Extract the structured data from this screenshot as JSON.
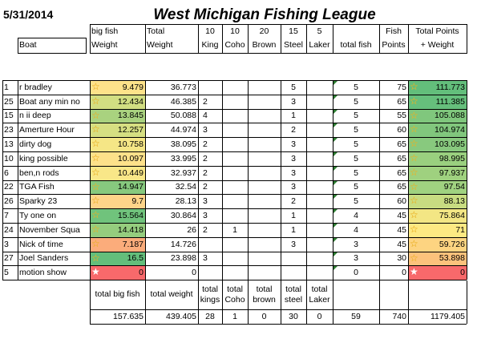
{
  "date": "5/31/2014",
  "title": "West Michigan Fishing League",
  "header": {
    "row1": {
      "boat": "",
      "bigfish": "big fish",
      "total": "Total",
      "king_pts": "10",
      "coho_pts": "10",
      "brown_pts": "20",
      "steel_pts": "15",
      "laker_pts": "5",
      "fish_label": "Fish",
      "totalpoints": "Total Points"
    },
    "row2": {
      "boat": "Boat",
      "bigfish": "Weight",
      "total": "Weight",
      "king": "King",
      "coho": "Coho",
      "brown": "Brown",
      "steel": "Steel",
      "laker": "Laker",
      "totalfish": "total fish",
      "points": "Points",
      "totalpoints": "+ Weight"
    }
  },
  "rows": [
    {
      "num": "1",
      "boat": "r bradley",
      "big": "9.479",
      "total": "36.773",
      "king": "",
      "coho": "",
      "brown": "",
      "steel": "5",
      "laker": "",
      "fish": "5",
      "points": "75",
      "tp": "111.773",
      "bigcolor": "#fde28a",
      "tpcolor": "#63be7b"
    },
    {
      "num": "25",
      "boat": "Boat any min no",
      "big": "12.434",
      "total": "46.385",
      "king": "2",
      "coho": "",
      "brown": "",
      "steel": "3",
      "laker": "",
      "fish": "5",
      "points": "65",
      "tp": "111.385",
      "bigcolor": "#d2de82",
      "tpcolor": "#66bf7c"
    },
    {
      "num": "15",
      "boat": "n ii deep",
      "big": "13.845",
      "total": "50.088",
      "king": "4",
      "coho": "",
      "brown": "",
      "steel": "1",
      "laker": "",
      "fish": "5",
      "points": "55",
      "tp": "105.088",
      "bigcolor": "#a9d27f",
      "tpcolor": "#80c77d"
    },
    {
      "num": "23",
      "boat": "Amerture Hour",
      "big": "12.257",
      "total": "44.974",
      "king": "3",
      "coho": "",
      "brown": "",
      "steel": "2",
      "laker": "",
      "fish": "5",
      "points": "60",
      "tp": "104.974",
      "bigcolor": "#d6df82",
      "tpcolor": "#81c77d"
    },
    {
      "num": "13",
      "boat": "dirty dog",
      "big": "10.758",
      "total": "38.095",
      "king": "2",
      "coho": "",
      "brown": "",
      "steel": "3",
      "laker": "",
      "fish": "5",
      "points": "65",
      "tp": "103.095",
      "bigcolor": "#f5e686",
      "tpcolor": "#88c97e"
    },
    {
      "num": "10",
      "boat": "king possible",
      "big": "10.097",
      "total": "33.995",
      "king": "2",
      "coho": "",
      "brown": "",
      "steel": "3",
      "laker": "",
      "fish": "5",
      "points": "65",
      "tp": "98.995",
      "bigcolor": "#fde18a",
      "tpcolor": "#9ad07f"
    },
    {
      "num": "6",
      "boat": "ben,n rods",
      "big": "10.449",
      "total": "32.937",
      "king": "2",
      "coho": "",
      "brown": "",
      "steel": "3",
      "laker": "",
      "fish": "5",
      "points": "65",
      "tp": "97.937",
      "bigcolor": "#f9e788",
      "tpcolor": "#9fd17f"
    },
    {
      "num": "22",
      "boat": "TGA Fish",
      "big": "14.947",
      "total": "32.54",
      "king": "2",
      "coho": "",
      "brown": "",
      "steel": "3",
      "laker": "",
      "fish": "5",
      "points": "65",
      "tp": "97.54",
      "bigcolor": "#87c97e",
      "tpcolor": "#a0d280"
    },
    {
      "num": "26",
      "boat": "Sparky 23",
      "big": "9.7",
      "total": "28.13",
      "king": "3",
      "coho": "",
      "brown": "",
      "steel": "2",
      "laker": "",
      "fish": "5",
      "points": "60",
      "tp": "88.13",
      "bigcolor": "#fed489",
      "tpcolor": "#c8dc81"
    },
    {
      "num": "7",
      "boat": "Ty one on",
      "big": "15.564",
      "total": "30.864",
      "king": "3",
      "coho": "",
      "brown": "",
      "steel": "1",
      "laker": "",
      "fish": "4",
      "points": "45",
      "tp": "75.864",
      "bigcolor": "#70c37c",
      "tpcolor": "#f3e684"
    },
    {
      "num": "24",
      "boat": "November Squa",
      "big": "14.418",
      "total": "26",
      "king": "2",
      "coho": "1",
      "brown": "",
      "steel": "1",
      "laker": "",
      "fish": "4",
      "points": "45",
      "tp": "71",
      "bigcolor": "#95cd7e",
      "tpcolor": "#fde983"
    },
    {
      "num": "3",
      "boat": "Nick of time",
      "big": "7.187",
      "total": "14.726",
      "king": "",
      "coho": "",
      "brown": "",
      "steel": "3",
      "laker": "",
      "fish": "3",
      "points": "45",
      "tp": "59.726",
      "bigcolor": "#fbac7b",
      "tpcolor": "#fdd481"
    },
    {
      "num": "27",
      "boat": "Joel Sanders",
      "big": "16.5",
      "total": "23.898",
      "king": "3",
      "coho": "",
      "brown": "",
      "steel": "",
      "laker": "",
      "fish": "3",
      "points": "30",
      "tp": "53.898",
      "bigcolor": "#63be7b",
      "tpcolor": "#fcc27c"
    },
    {
      "num": "5",
      "boat": "motion show",
      "big": "0",
      "total": "0",
      "king": "",
      "coho": "",
      "brown": "",
      "steel": "",
      "laker": "",
      "fish": "0",
      "points": "0",
      "tp": "0",
      "bigcolor": "#f8696b",
      "tpcolor": "#f8696b"
    }
  ],
  "footer": {
    "labels": {
      "bigfish": "total big fish",
      "weight": "total weight",
      "kings": "total kings",
      "coho": "total Coho",
      "brown": "total brown",
      "steel": "total steel",
      "laker": "total Laker"
    },
    "totals": {
      "bigfish": "157.635",
      "weight": "439.405",
      "kings": "28",
      "coho": "1",
      "brown": "0",
      "steel": "30",
      "laker": "0",
      "fish": "59",
      "points": "740",
      "tp": "1179.405"
    }
  }
}
